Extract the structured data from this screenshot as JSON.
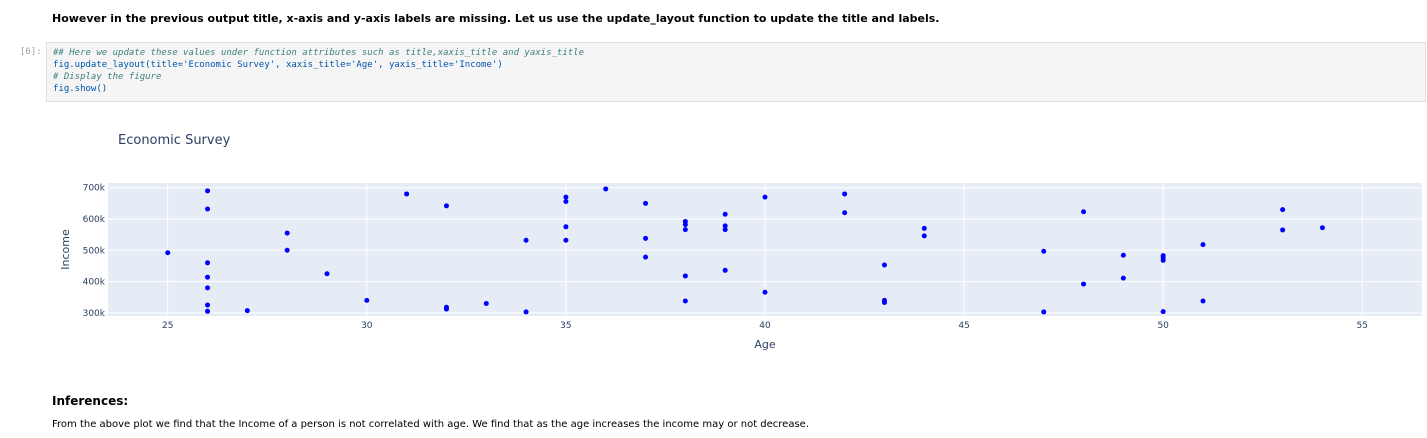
{
  "markdown_top": "However in the previous output title, x-axis and y-axis labels are missing. Let us use the update_layout function to update the title and labels.",
  "cell": {
    "prompt": "[6]:",
    "lines": [
      "## Here we update these values under function attributes such as title,xaxis_title and yaxis_title",
      "fig.update_layout(title='Economic Survey', xaxis_title='Age', yaxis_title='Income')",
      "# Display the figure",
      "fig.show()"
    ]
  },
  "chart_data": {
    "type": "scatter",
    "title": "Economic Survey",
    "xlabel": "Age",
    "ylabel": "Income",
    "xlim": [
      23.5,
      56.5
    ],
    "ylim": [
      290000,
      715000
    ],
    "xticks": [
      25,
      30,
      35,
      40,
      45,
      50,
      55
    ],
    "yticks": [
      300000,
      400000,
      500000,
      600000,
      700000
    ],
    "ytick_labels": [
      "300k",
      "400k",
      "500k",
      "600k",
      "700k"
    ],
    "marker_color": "#0000ff",
    "plot_bg": "#e5ecf6",
    "grid": true,
    "points": [
      [
        25,
        492000
      ],
      [
        26,
        690000
      ],
      [
        26,
        632000
      ],
      [
        26,
        460000
      ],
      [
        26,
        414000
      ],
      [
        26,
        380000
      ],
      [
        26,
        325000
      ],
      [
        26,
        305000
      ],
      [
        27,
        307000
      ],
      [
        28,
        555000
      ],
      [
        28,
        500000
      ],
      [
        29,
        425000
      ],
      [
        30,
        340000
      ],
      [
        31,
        680000
      ],
      [
        32,
        642000
      ],
      [
        32,
        318000
      ],
      [
        32,
        312000
      ],
      [
        33,
        330000
      ],
      [
        34,
        532000
      ],
      [
        34,
        303000
      ],
      [
        35,
        670000
      ],
      [
        35,
        656000
      ],
      [
        35,
        575000
      ],
      [
        35,
        532000
      ],
      [
        36,
        696000
      ],
      [
        37,
        650000
      ],
      [
        37,
        538000
      ],
      [
        37,
        478000
      ],
      [
        38,
        592000
      ],
      [
        38,
        582000
      ],
      [
        38,
        566000
      ],
      [
        38,
        418000
      ],
      [
        38,
        338000
      ],
      [
        39,
        615000
      ],
      [
        39,
        578000
      ],
      [
        39,
        566000
      ],
      [
        39,
        436000
      ],
      [
        40,
        670000
      ],
      [
        40,
        366000
      ],
      [
        42,
        680000
      ],
      [
        42,
        620000
      ],
      [
        43,
        453000
      ],
      [
        43,
        340000
      ],
      [
        43,
        333000
      ],
      [
        44,
        570000
      ],
      [
        44,
        546000
      ],
      [
        47,
        497000
      ],
      [
        47,
        303000
      ],
      [
        48,
        623000
      ],
      [
        48,
        392000
      ],
      [
        49,
        484000
      ],
      [
        49,
        411000
      ],
      [
        50,
        483000
      ],
      [
        50,
        476000
      ],
      [
        50,
        468000
      ],
      [
        50,
        304000
      ],
      [
        51,
        518000
      ],
      [
        51,
        338000
      ],
      [
        53,
        630000
      ],
      [
        53,
        565000
      ],
      [
        54,
        572000
      ]
    ]
  },
  "inferences": {
    "heading": "Inferences:",
    "text": "From the above plot we find that the Income of a person is not correlated with age. We find that as the age increases the income may or not decrease."
  }
}
